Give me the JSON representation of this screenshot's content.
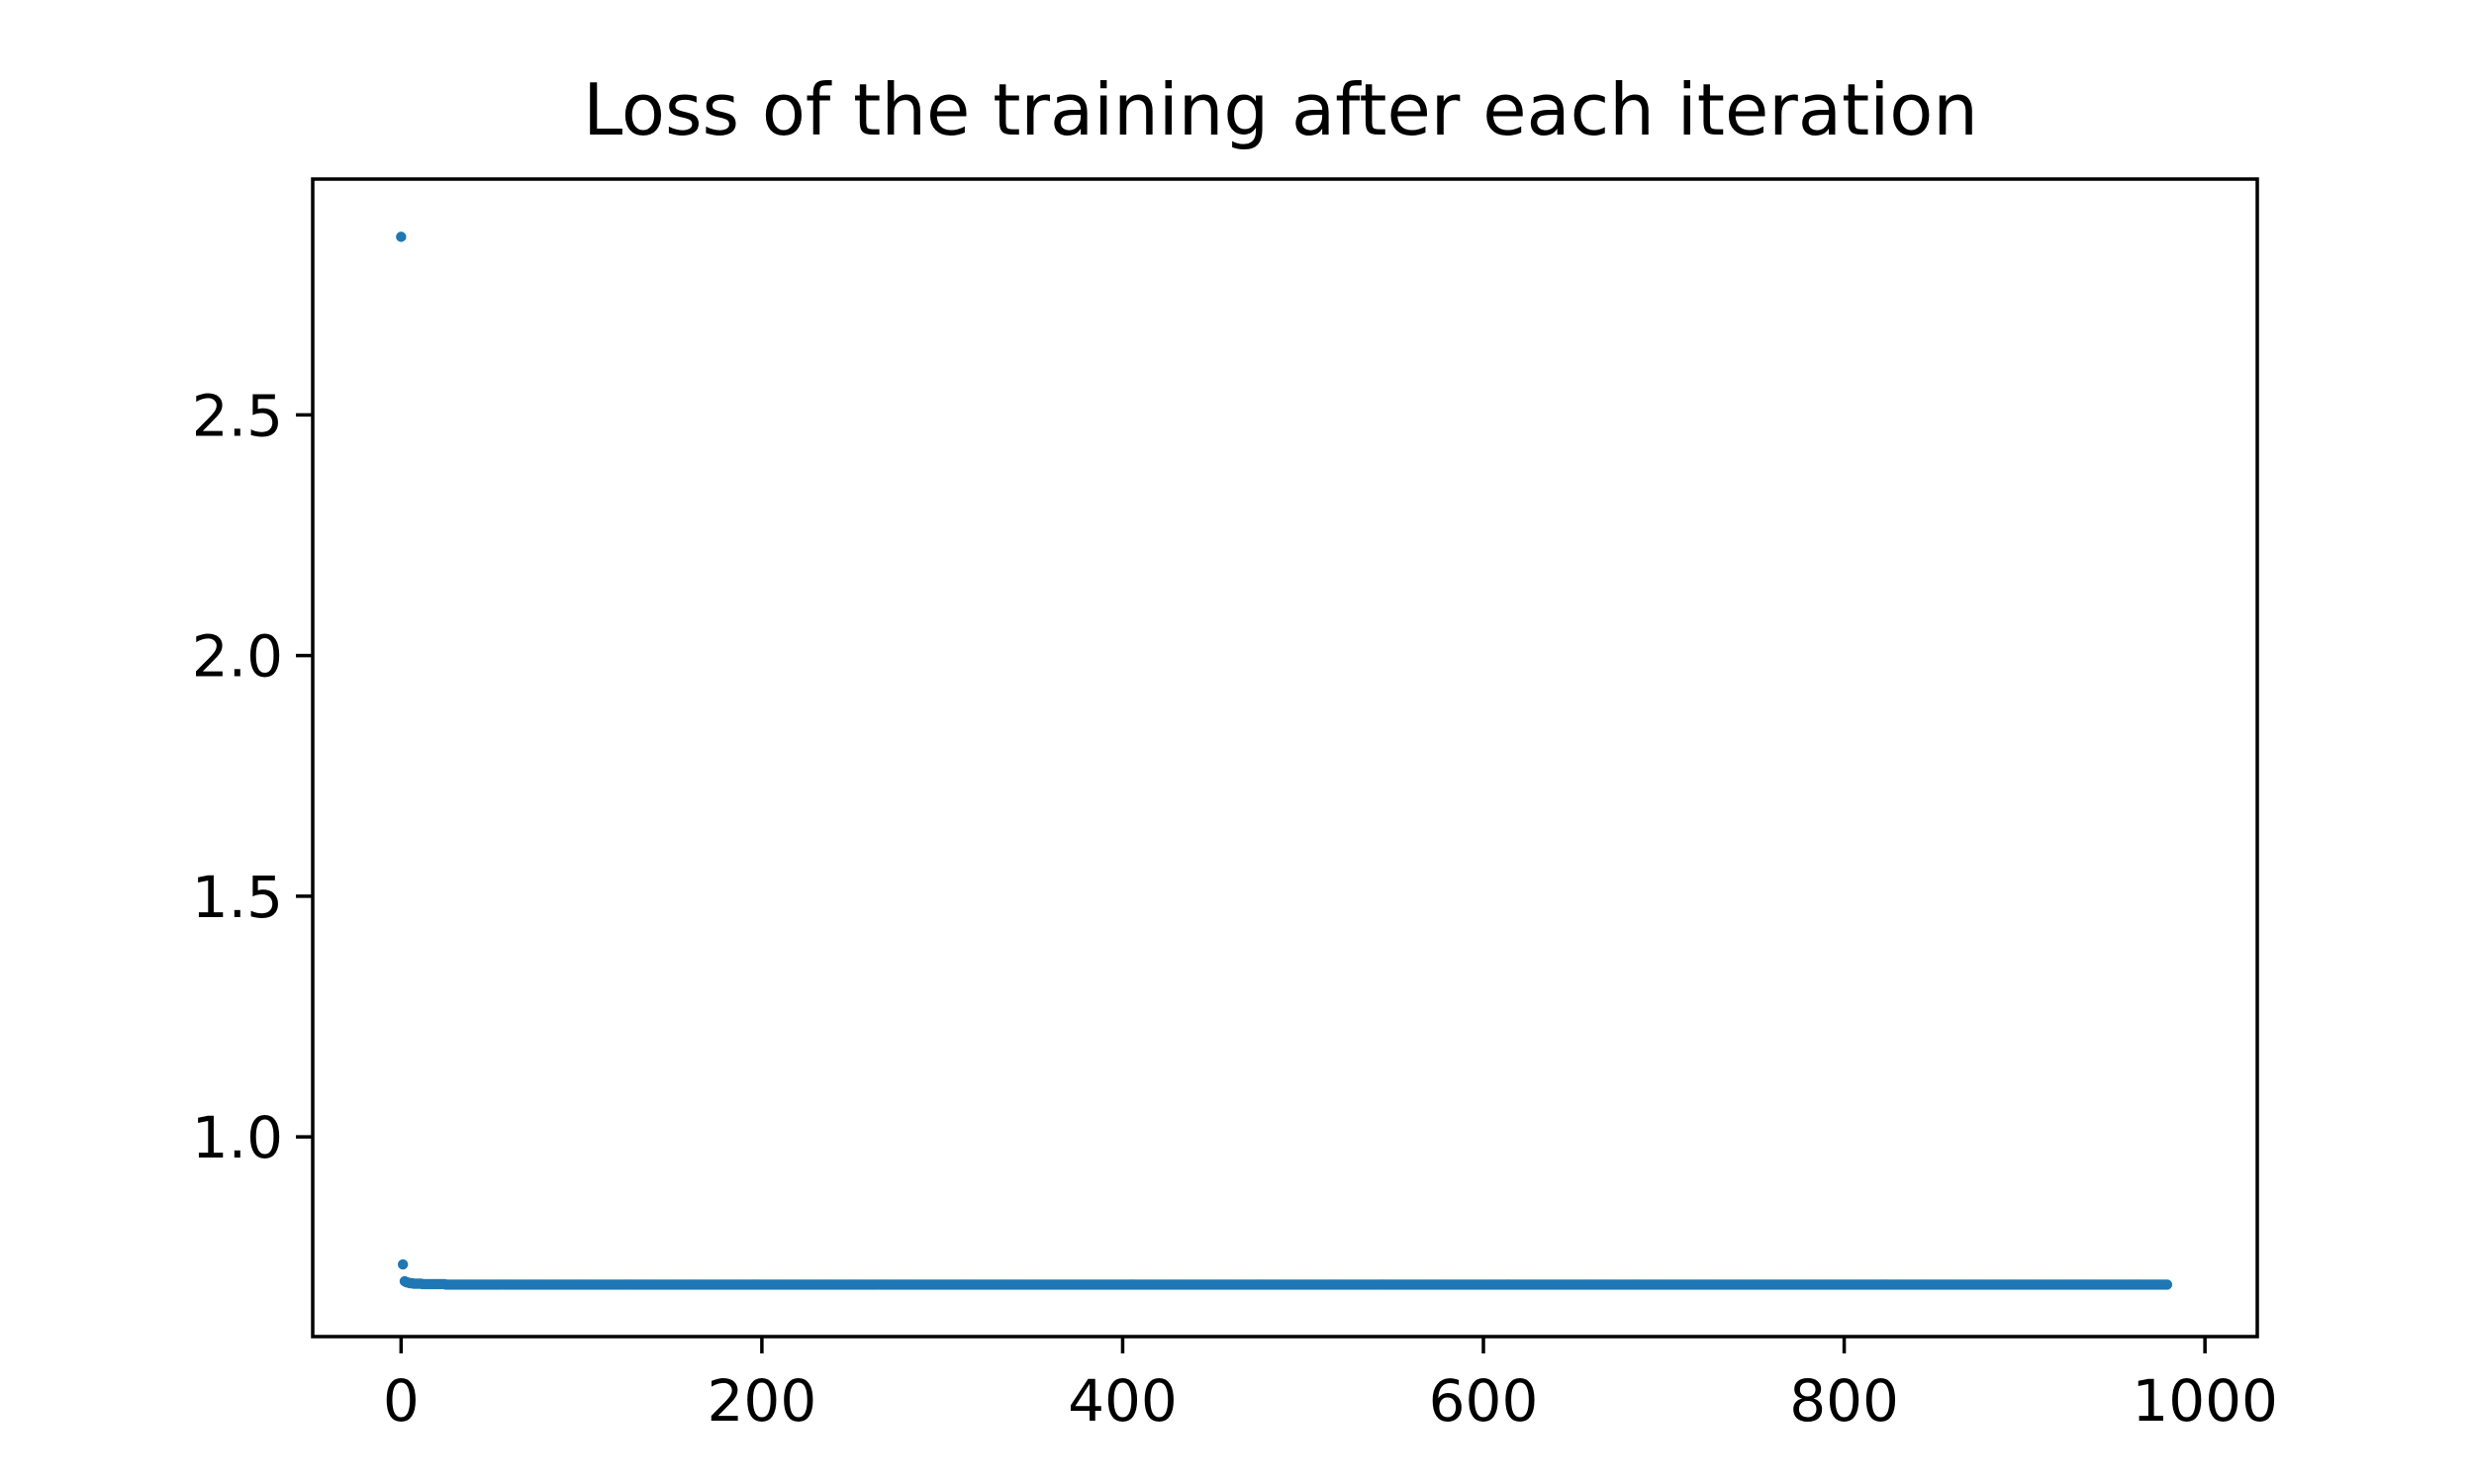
{
  "chart_data": {
    "type": "scatter",
    "title": "Loss of the training after each iteration",
    "xlabel": "",
    "ylabel": "",
    "xlim": [
      -49,
      1029
    ],
    "ylim": [
      0.585,
      2.99
    ],
    "xticks": [
      0,
      200,
      400,
      600,
      800,
      1000
    ],
    "xtick_labels": [
      "0",
      "200",
      "400",
      "600",
      "800",
      "1000"
    ],
    "yticks": [
      1.0,
      1.5,
      2.0,
      2.5
    ],
    "ytick_labels": [
      "1.0",
      "1.5",
      "2.0",
      "2.5"
    ],
    "grid": false,
    "legend": null,
    "marker_color": "#1f77b4",
    "series": [
      {
        "x_start": 0,
        "x_end": 979,
        "x_step": 1,
        "head_values": [
          2.87,
          0.735,
          0.7,
          0.698,
          0.697,
          0.696,
          0.696,
          0.695,
          0.695,
          0.695,
          0.695,
          0.695,
          0.694,
          0.694,
          0.694,
          0.694,
          0.694,
          0.694,
          0.694,
          0.694,
          0.694,
          0.694,
          0.694,
          0.694,
          0.694,
          0.693
        ],
        "plateau_value": 0.693
      }
    ]
  }
}
